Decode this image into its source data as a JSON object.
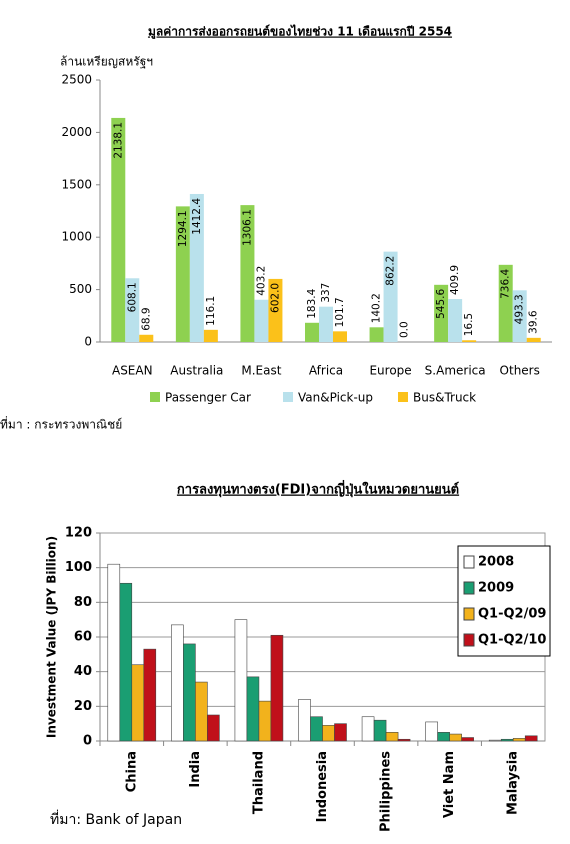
{
  "chart_data": [
    {
      "type": "bar",
      "title": "มูลค่าการส่งออกรถยนต์ของไทยช่วง 11 เดือนแรกปี 2554",
      "y_label": "ล้านเหรียญสหรัฐฯ",
      "categories": [
        "ASEAN",
        "Australia",
        "M.East",
        "Africa",
        "Europe",
        "S.America",
        "Others"
      ],
      "series": [
        {
          "name": "Passenger Car",
          "color": "#8ed150",
          "values": [
            2138.1,
            1294.1,
            1306.1,
            183.4,
            140.2,
            545.6,
            736.4
          ]
        },
        {
          "name": "Van&Pick-up",
          "color": "#b9e1ec",
          "values": [
            608.1,
            1412.4,
            403.2,
            337,
            862.2,
            409.9,
            493.3
          ]
        },
        {
          "name": "Bus&Truck",
          "color": "#fbc11a",
          "values": [
            68.9,
            116.1,
            602.0,
            101.7,
            0.0,
            16.5,
            39.6
          ],
          "value_labels": [
            "68.9",
            "116.1",
            "602.0",
            "101.7",
            "0.0",
            "16.5",
            "39.6"
          ]
        }
      ],
      "ylim": [
        0,
        2500
      ],
      "yticks": [
        0,
        500,
        1000,
        1500,
        2000,
        2500
      ],
      "grid": false,
      "data_labels": true,
      "legend": "bottom",
      "source": "ที่มา : กระทรวงพาณิชย์"
    },
    {
      "type": "bar",
      "title": "การลงทุนทางตรง(FDI)จากญี่ปุ่นในหมวดยานยนต์",
      "y_label": "Investment Value (JPY Billion)",
      "categories": [
        "China",
        "India",
        "Thailand",
        "Indonesia",
        "Philippines",
        "Viet Nam",
        "Malaysia"
      ],
      "series": [
        {
          "name": "2008",
          "color": "#ffffff",
          "values": [
            102,
            67,
            70,
            24,
            14,
            11,
            0.5
          ]
        },
        {
          "name": "2009",
          "color": "#1a9e72",
          "values": [
            91,
            56,
            37,
            14,
            12,
            5,
            1
          ]
        },
        {
          "name": "Q1-Q2/09",
          "color": "#f2b21c",
          "values": [
            44,
            34,
            23,
            9,
            5,
            4,
            1.5
          ]
        },
        {
          "name": "Q1-Q2/10",
          "color": "#c0101a",
          "values": [
            53,
            15,
            61,
            10,
            1,
            2,
            3
          ]
        }
      ],
      "ylim": [
        0,
        120
      ],
      "yticks": [
        0,
        20,
        40,
        60,
        80,
        100,
        120
      ],
      "grid": true,
      "data_labels": false,
      "legend": "right",
      "source": "ที่มา:  Bank of Japan"
    }
  ]
}
